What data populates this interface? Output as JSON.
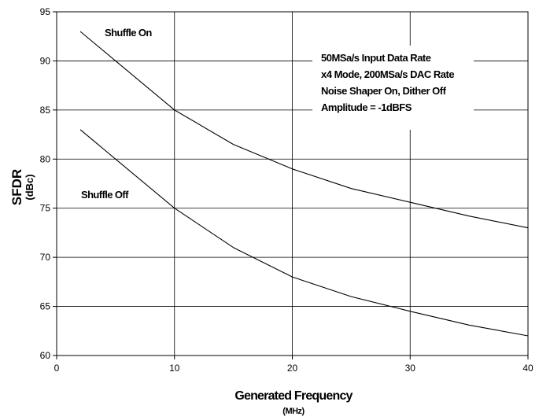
{
  "chart_data": {
    "type": "line",
    "title": "",
    "xlabel": "Generated Frequency",
    "xlabel_unit": "(MHz)",
    "ylabel": "SFDR",
    "ylabel_unit": "(dBc)",
    "xlim": [
      0,
      40
    ],
    "ylim": [
      60,
      95
    ],
    "xticks": [
      0,
      10,
      20,
      30,
      40
    ],
    "yticks": [
      60,
      65,
      70,
      75,
      80,
      85,
      90,
      95
    ],
    "grid": true,
    "legend": "none",
    "series": [
      {
        "name": "Shuffle On",
        "x": [
          2,
          5,
          10,
          15,
          20,
          25,
          30,
          35,
          40
        ],
        "y": [
          93,
          90,
          85,
          81.5,
          79,
          77,
          75.6,
          74.2,
          73
        ]
      },
      {
        "name": "Shuffle Off",
        "x": [
          2,
          5,
          10,
          15,
          20,
          25,
          30,
          35,
          40
        ],
        "y": [
          83,
          80,
          75,
          71,
          68,
          66,
          64.5,
          63.1,
          62
        ]
      }
    ],
    "annotations": [
      "50MSa/s Input Data Rate",
      "x4 Mode, 200MSa/s DAC Rate",
      "Noise Shaper On, Dither Off",
      "Amplitude = -1dBFS"
    ]
  }
}
